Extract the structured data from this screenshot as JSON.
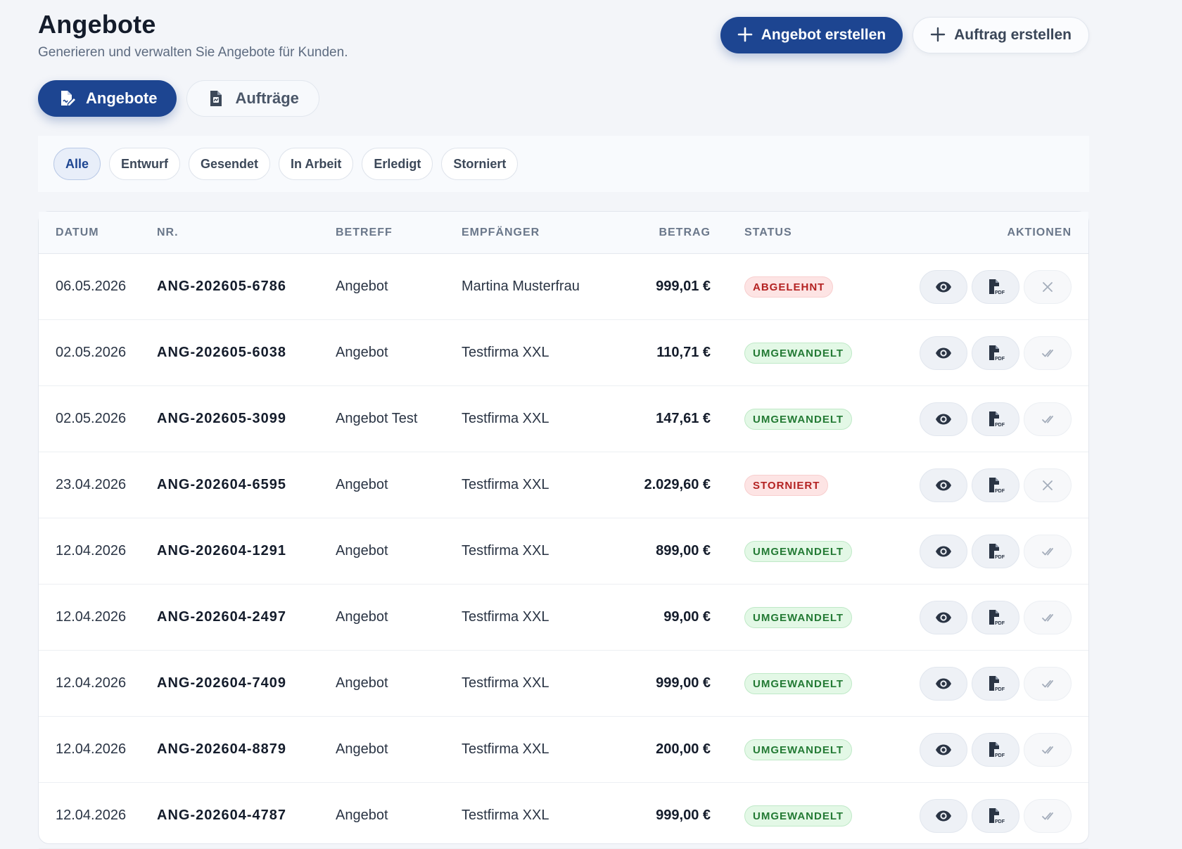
{
  "header": {
    "title": "Angebote",
    "subtitle": "Generieren und verwalten Sie Angebote für Kunden.",
    "primary_button": "Angebot erstellen",
    "secondary_button": "Auftrag erstellen"
  },
  "tabs": [
    {
      "label": "Angebote",
      "active": true,
      "icon": "file-signature-icon"
    },
    {
      "label": "Aufträge",
      "active": false,
      "icon": "file-invoice-icon"
    }
  ],
  "filters": [
    {
      "label": "Alle",
      "active": true
    },
    {
      "label": "Entwurf",
      "active": false
    },
    {
      "label": "Gesendet",
      "active": false
    },
    {
      "label": "In Arbeit",
      "active": false
    },
    {
      "label": "Erledigt",
      "active": false
    },
    {
      "label": "Storniert",
      "active": false
    }
  ],
  "table": {
    "columns": {
      "datum": "DATUM",
      "nr": "NR.",
      "betreff": "BETREFF",
      "empfaenger": "EMPFÄNGER",
      "betrag": "BETRAG",
      "status": "STATUS",
      "aktionen": "AKTIONEN"
    },
    "rows": [
      {
        "datum": "06.05.2026",
        "nr": "ANG-202605-6786",
        "betreff": "Angebot",
        "empfaenger": "Martina Musterfrau",
        "betrag": "999,01 €",
        "status": "ABGELEHNT",
        "status_color": "red",
        "state_icon": "x-icon"
      },
      {
        "datum": "02.05.2026",
        "nr": "ANG-202605-6038",
        "betreff": "Angebot",
        "empfaenger": "Testfirma XXL",
        "betrag": "110,71 €",
        "status": "UMGEWANDELT",
        "status_color": "green",
        "state_icon": "check-double-icon"
      },
      {
        "datum": "02.05.2026",
        "nr": "ANG-202605-3099",
        "betreff": "Angebot Test",
        "empfaenger": "Testfirma XXL",
        "betrag": "147,61 €",
        "status": "UMGEWANDELT",
        "status_color": "green",
        "state_icon": "check-double-icon"
      },
      {
        "datum": "23.04.2026",
        "nr": "ANG-202604-6595",
        "betreff": "Angebot",
        "empfaenger": "Testfirma XXL",
        "betrag": "2.029,60 €",
        "status": "STORNIERT",
        "status_color": "red",
        "state_icon": "x-icon"
      },
      {
        "datum": "12.04.2026",
        "nr": "ANG-202604-1291",
        "betreff": "Angebot",
        "empfaenger": "Testfirma XXL",
        "betrag": "899,00 €",
        "status": "UMGEWANDELT",
        "status_color": "green",
        "state_icon": "check-double-icon"
      },
      {
        "datum": "12.04.2026",
        "nr": "ANG-202604-2497",
        "betreff": "Angebot",
        "empfaenger": "Testfirma XXL",
        "betrag": "99,00 €",
        "status": "UMGEWANDELT",
        "status_color": "green",
        "state_icon": "check-double-icon"
      },
      {
        "datum": "12.04.2026",
        "nr": "ANG-202604-7409",
        "betreff": "Angebot",
        "empfaenger": "Testfirma XXL",
        "betrag": "999,00 €",
        "status": "UMGEWANDELT",
        "status_color": "green",
        "state_icon": "check-double-icon"
      },
      {
        "datum": "12.04.2026",
        "nr": "ANG-202604-8879",
        "betreff": "Angebot",
        "empfaenger": "Testfirma XXL",
        "betrag": "200,00 €",
        "status": "UMGEWANDELT",
        "status_color": "green",
        "state_icon": "check-double-icon"
      },
      {
        "datum": "12.04.2026",
        "nr": "ANG-202604-4787",
        "betreff": "Angebot",
        "empfaenger": "Testfirma XXL",
        "betrag": "999,00 €",
        "status": "UMGEWANDELT",
        "status_color": "green",
        "state_icon": "check-double-icon"
      }
    ]
  },
  "colors": {
    "primary": "#1d4591",
    "background": "#f3f5f9",
    "badge_red_text": "#b42222",
    "badge_green_text": "#237a34"
  }
}
